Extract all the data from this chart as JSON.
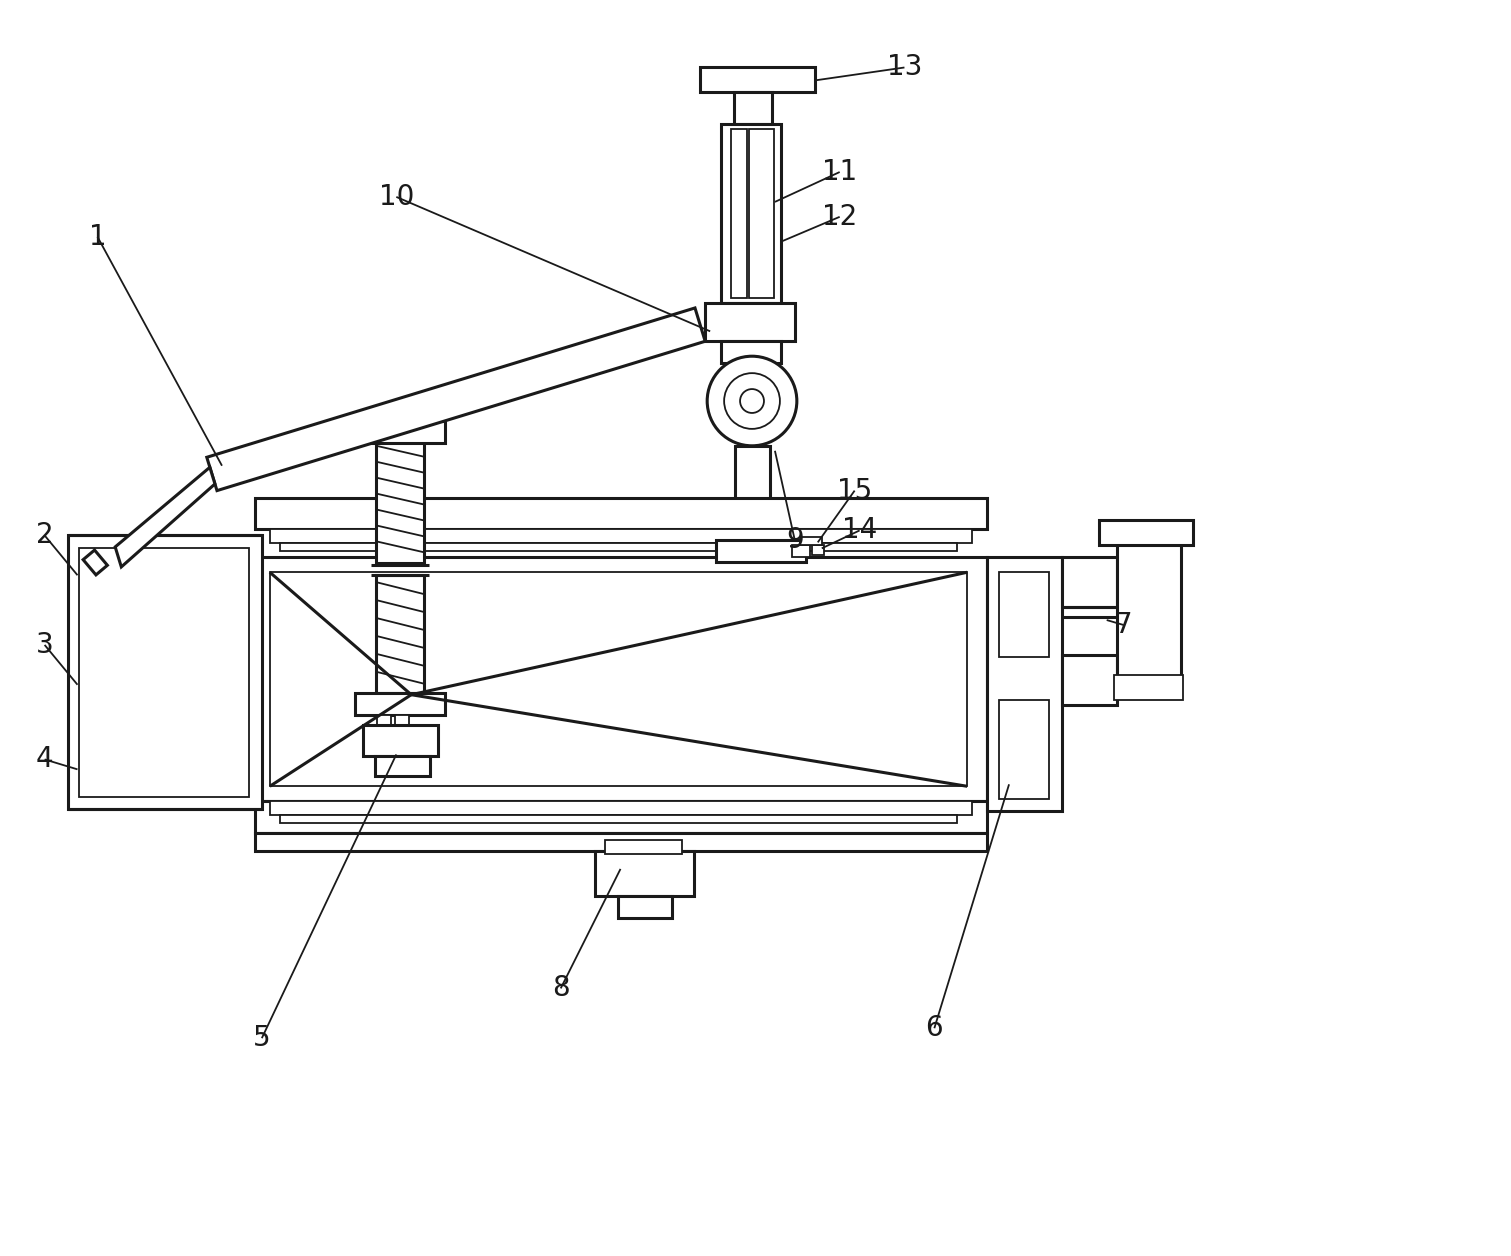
{
  "bg_color": "#ffffff",
  "lc": "#1a1a1a",
  "lw": 2.2,
  "tlw": 1.3,
  "fs": 20
}
